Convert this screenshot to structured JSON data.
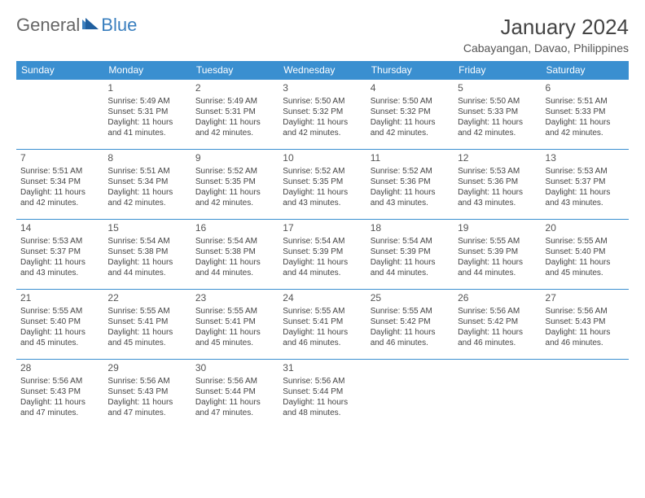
{
  "logo": {
    "text1": "General",
    "text2": "Blue"
  },
  "title": "January 2024",
  "location": "Cabayangan, Davao, Philippines",
  "colors": {
    "header_bg": "#3a8fd0",
    "header_fg": "#ffffff",
    "rule": "#3a8fd0",
    "text": "#444444",
    "logo_gray": "#666666",
    "logo_blue": "#3a7fbf"
  },
  "weekdays": [
    "Sunday",
    "Monday",
    "Tuesday",
    "Wednesday",
    "Thursday",
    "Friday",
    "Saturday"
  ],
  "weeks": [
    [
      null,
      {
        "n": "1",
        "sr": "5:49 AM",
        "ss": "5:31 PM",
        "dl": "11 hours and 41 minutes."
      },
      {
        "n": "2",
        "sr": "5:49 AM",
        "ss": "5:31 PM",
        "dl": "11 hours and 42 minutes."
      },
      {
        "n": "3",
        "sr": "5:50 AM",
        "ss": "5:32 PM",
        "dl": "11 hours and 42 minutes."
      },
      {
        "n": "4",
        "sr": "5:50 AM",
        "ss": "5:32 PM",
        "dl": "11 hours and 42 minutes."
      },
      {
        "n": "5",
        "sr": "5:50 AM",
        "ss": "5:33 PM",
        "dl": "11 hours and 42 minutes."
      },
      {
        "n": "6",
        "sr": "5:51 AM",
        "ss": "5:33 PM",
        "dl": "11 hours and 42 minutes."
      }
    ],
    [
      {
        "n": "7",
        "sr": "5:51 AM",
        "ss": "5:34 PM",
        "dl": "11 hours and 42 minutes."
      },
      {
        "n": "8",
        "sr": "5:51 AM",
        "ss": "5:34 PM",
        "dl": "11 hours and 42 minutes."
      },
      {
        "n": "9",
        "sr": "5:52 AM",
        "ss": "5:35 PM",
        "dl": "11 hours and 42 minutes."
      },
      {
        "n": "10",
        "sr": "5:52 AM",
        "ss": "5:35 PM",
        "dl": "11 hours and 43 minutes."
      },
      {
        "n": "11",
        "sr": "5:52 AM",
        "ss": "5:36 PM",
        "dl": "11 hours and 43 minutes."
      },
      {
        "n": "12",
        "sr": "5:53 AM",
        "ss": "5:36 PM",
        "dl": "11 hours and 43 minutes."
      },
      {
        "n": "13",
        "sr": "5:53 AM",
        "ss": "5:37 PM",
        "dl": "11 hours and 43 minutes."
      }
    ],
    [
      {
        "n": "14",
        "sr": "5:53 AM",
        "ss": "5:37 PM",
        "dl": "11 hours and 43 minutes."
      },
      {
        "n": "15",
        "sr": "5:54 AM",
        "ss": "5:38 PM",
        "dl": "11 hours and 44 minutes."
      },
      {
        "n": "16",
        "sr": "5:54 AM",
        "ss": "5:38 PM",
        "dl": "11 hours and 44 minutes."
      },
      {
        "n": "17",
        "sr": "5:54 AM",
        "ss": "5:39 PM",
        "dl": "11 hours and 44 minutes."
      },
      {
        "n": "18",
        "sr": "5:54 AM",
        "ss": "5:39 PM",
        "dl": "11 hours and 44 minutes."
      },
      {
        "n": "19",
        "sr": "5:55 AM",
        "ss": "5:39 PM",
        "dl": "11 hours and 44 minutes."
      },
      {
        "n": "20",
        "sr": "5:55 AM",
        "ss": "5:40 PM",
        "dl": "11 hours and 45 minutes."
      }
    ],
    [
      {
        "n": "21",
        "sr": "5:55 AM",
        "ss": "5:40 PM",
        "dl": "11 hours and 45 minutes."
      },
      {
        "n": "22",
        "sr": "5:55 AM",
        "ss": "5:41 PM",
        "dl": "11 hours and 45 minutes."
      },
      {
        "n": "23",
        "sr": "5:55 AM",
        "ss": "5:41 PM",
        "dl": "11 hours and 45 minutes."
      },
      {
        "n": "24",
        "sr": "5:55 AM",
        "ss": "5:41 PM",
        "dl": "11 hours and 46 minutes."
      },
      {
        "n": "25",
        "sr": "5:55 AM",
        "ss": "5:42 PM",
        "dl": "11 hours and 46 minutes."
      },
      {
        "n": "26",
        "sr": "5:56 AM",
        "ss": "5:42 PM",
        "dl": "11 hours and 46 minutes."
      },
      {
        "n": "27",
        "sr": "5:56 AM",
        "ss": "5:43 PM",
        "dl": "11 hours and 46 minutes."
      }
    ],
    [
      {
        "n": "28",
        "sr": "5:56 AM",
        "ss": "5:43 PM",
        "dl": "11 hours and 47 minutes."
      },
      {
        "n": "29",
        "sr": "5:56 AM",
        "ss": "5:43 PM",
        "dl": "11 hours and 47 minutes."
      },
      {
        "n": "30",
        "sr": "5:56 AM",
        "ss": "5:44 PM",
        "dl": "11 hours and 47 minutes."
      },
      {
        "n": "31",
        "sr": "5:56 AM",
        "ss": "5:44 PM",
        "dl": "11 hours and 48 minutes."
      },
      null,
      null,
      null
    ]
  ],
  "labels": {
    "sunrise": "Sunrise: ",
    "sunset": "Sunset: ",
    "daylight": "Daylight: "
  }
}
